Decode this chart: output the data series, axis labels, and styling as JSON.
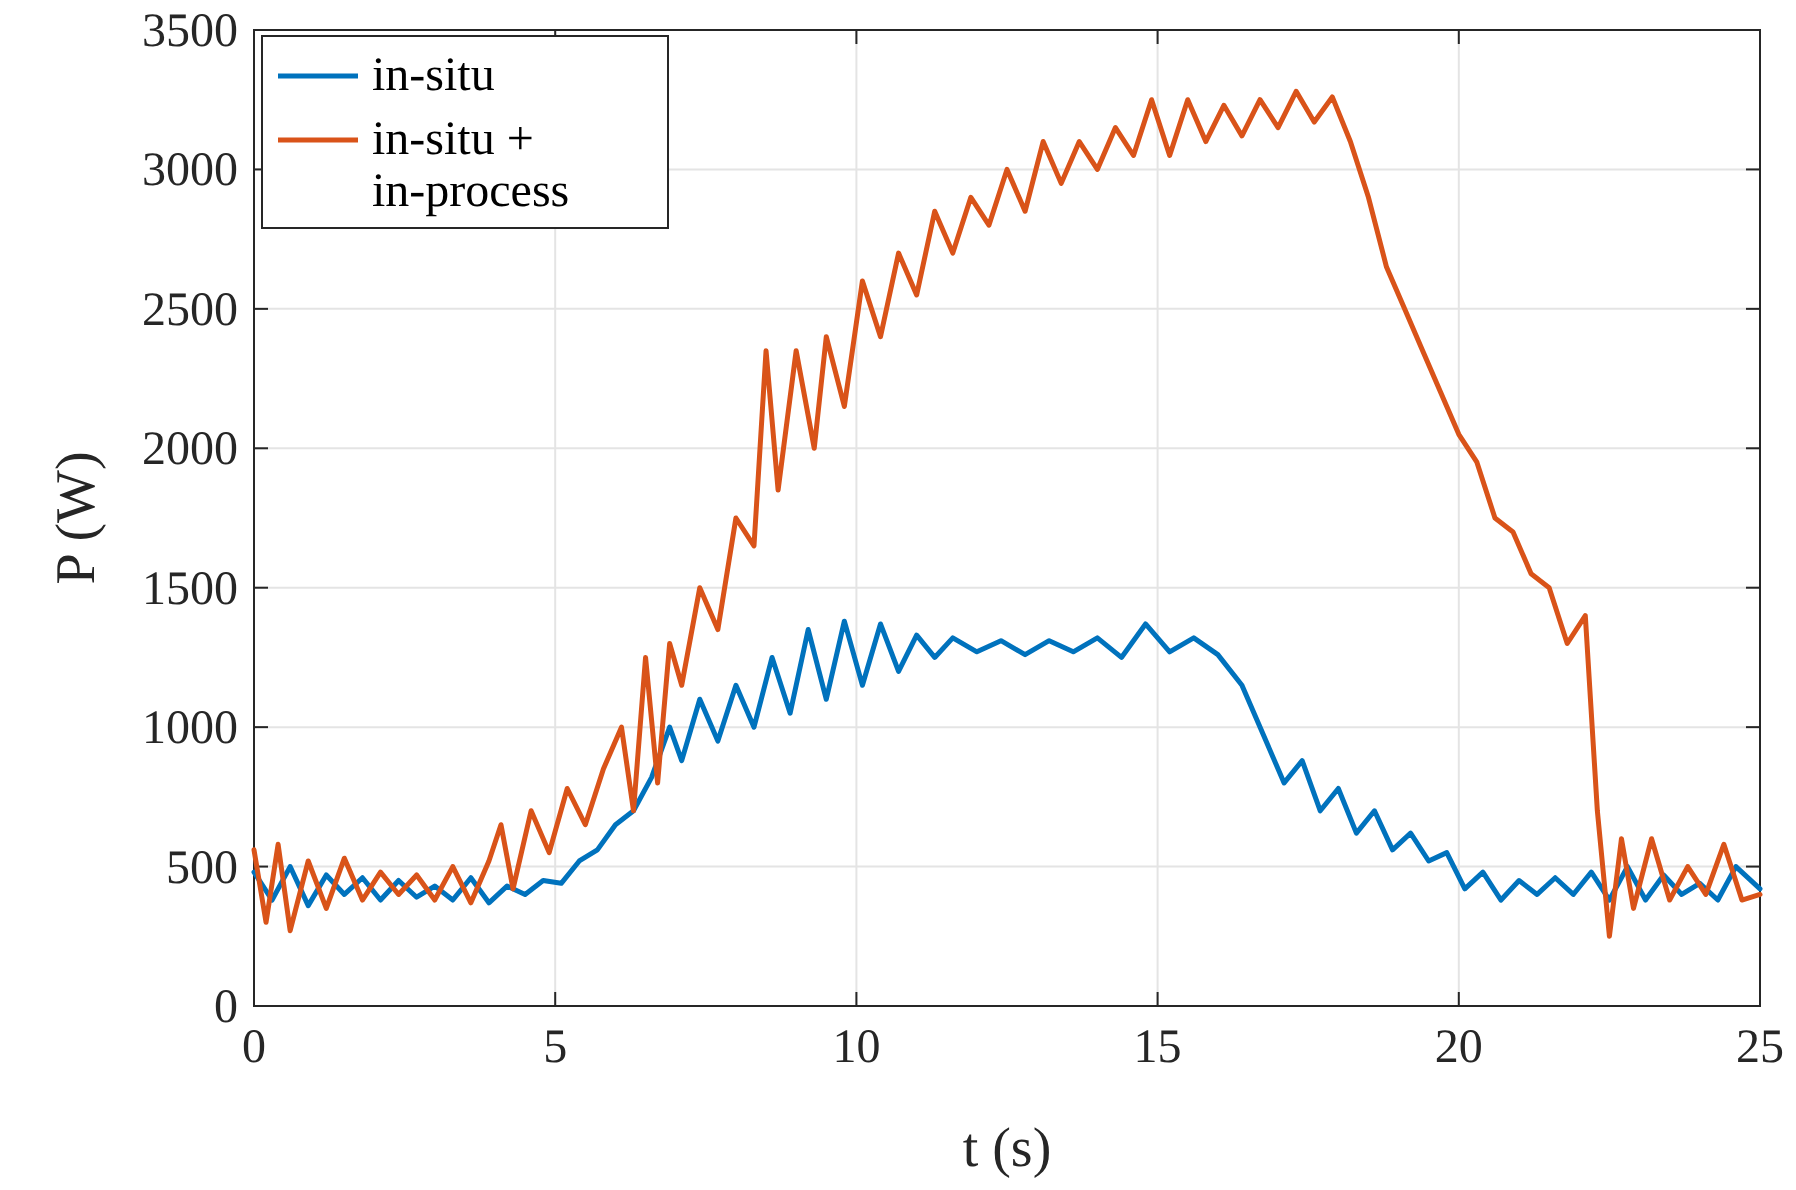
{
  "chart_data": {
    "type": "line",
    "xlabel": "t (s)",
    "ylabel": "P (W)",
    "xlim": [
      0,
      25
    ],
    "xticks": [
      0,
      5,
      10,
      15,
      20,
      25
    ],
    "ylim": [
      0,
      3500
    ],
    "yticks": [
      0,
      500,
      1000,
      1500,
      2000,
      2500,
      3000,
      3500
    ],
    "grid": true,
    "legend": "top left",
    "series": [
      {
        "name": "in-situ",
        "color": "#0072bd",
        "x": [
          0,
          0.3,
          0.6,
          0.9,
          1.2,
          1.5,
          1.8,
          2.1,
          2.4,
          2.7,
          3.0,
          3.3,
          3.6,
          3.9,
          4.2,
          4.5,
          4.8,
          5.1,
          5.4,
          5.7,
          6.0,
          6.3,
          6.6,
          6.9,
          7.1,
          7.4,
          7.7,
          8.0,
          8.3,
          8.6,
          8.9,
          9.2,
          9.5,
          9.8,
          10.1,
          10.4,
          10.7,
          11.0,
          11.3,
          11.6,
          12.0,
          12.4,
          12.8,
          13.2,
          13.6,
          14.0,
          14.4,
          14.8,
          15.2,
          15.6,
          16.0,
          16.4,
          16.8,
          17.1,
          17.4,
          17.7,
          18.0,
          18.3,
          18.6,
          18.9,
          19.2,
          19.5,
          19.8,
          20.1,
          20.4,
          20.7,
          21.0,
          21.3,
          21.6,
          21.9,
          22.2,
          22.5,
          22.8,
          23.1,
          23.4,
          23.7,
          24.0,
          24.3,
          24.6,
          25
        ],
        "values": [
          480,
          380,
          500,
          360,
          470,
          400,
          460,
          380,
          450,
          390,
          430,
          380,
          460,
          370,
          430,
          400,
          450,
          440,
          520,
          560,
          650,
          700,
          820,
          1000,
          880,
          1100,
          950,
          1150,
          1000,
          1250,
          1050,
          1350,
          1100,
          1380,
          1150,
          1370,
          1200,
          1330,
          1250,
          1320,
          1270,
          1310,
          1260,
          1310,
          1270,
          1320,
          1250,
          1370,
          1270,
          1320,
          1260,
          1150,
          950,
          800,
          880,
          700,
          780,
          620,
          700,
          560,
          620,
          520,
          550,
          420,
          480,
          380,
          450,
          400,
          460,
          400,
          480,
          380,
          500,
          380,
          470,
          400,
          440,
          380,
          500,
          420
        ]
      },
      {
        "name": "in-situ + in-process",
        "color": "#d95319",
        "x": [
          0,
          0.2,
          0.4,
          0.6,
          0.9,
          1.2,
          1.5,
          1.8,
          2.1,
          2.4,
          2.7,
          3.0,
          3.3,
          3.6,
          3.9,
          4.1,
          4.3,
          4.6,
          4.9,
          5.2,
          5.5,
          5.8,
          6.1,
          6.3,
          6.5,
          6.7,
          6.9,
          7.1,
          7.4,
          7.7,
          8.0,
          8.3,
          8.5,
          8.7,
          9.0,
          9.3,
          9.5,
          9.8,
          10.1,
          10.4,
          10.7,
          11.0,
          11.3,
          11.6,
          11.9,
          12.2,
          12.5,
          12.8,
          13.1,
          13.4,
          13.7,
          14.0,
          14.3,
          14.6,
          14.9,
          15.2,
          15.5,
          15.8,
          16.1,
          16.4,
          16.7,
          17.0,
          17.3,
          17.6,
          17.9,
          18.2,
          18.5,
          18.8,
          19.1,
          19.4,
          19.7,
          20.0,
          20.3,
          20.6,
          20.9,
          21.2,
          21.5,
          21.8,
          22.1,
          22.3,
          22.5,
          22.7,
          22.9,
          23.2,
          23.5,
          23.8,
          24.1,
          24.4,
          24.7,
          25
        ],
        "values": [
          560,
          300,
          580,
          270,
          520,
          350,
          530,
          380,
          480,
          400,
          470,
          380,
          500,
          370,
          520,
          650,
          420,
          700,
          550,
          780,
          650,
          850,
          1000,
          700,
          1250,
          800,
          1300,
          1150,
          1500,
          1350,
          1750,
          1650,
          2350,
          1850,
          2350,
          2000,
          2400,
          2150,
          2600,
          2400,
          2700,
          2550,
          2850,
          2700,
          2900,
          2800,
          3000,
          2850,
          3100,
          2950,
          3100,
          3000,
          3150,
          3050,
          3250,
          3050,
          3250,
          3100,
          3230,
          3120,
          3250,
          3150,
          3280,
          3170,
          3260,
          3100,
          2900,
          2650,
          2500,
          2350,
          2200,
          2050,
          1950,
          1750,
          1700,
          1550,
          1500,
          1300,
          1400,
          700,
          250,
          600,
          350,
          600,
          380,
          500,
          400,
          580,
          380,
          400
        ]
      }
    ]
  }
}
